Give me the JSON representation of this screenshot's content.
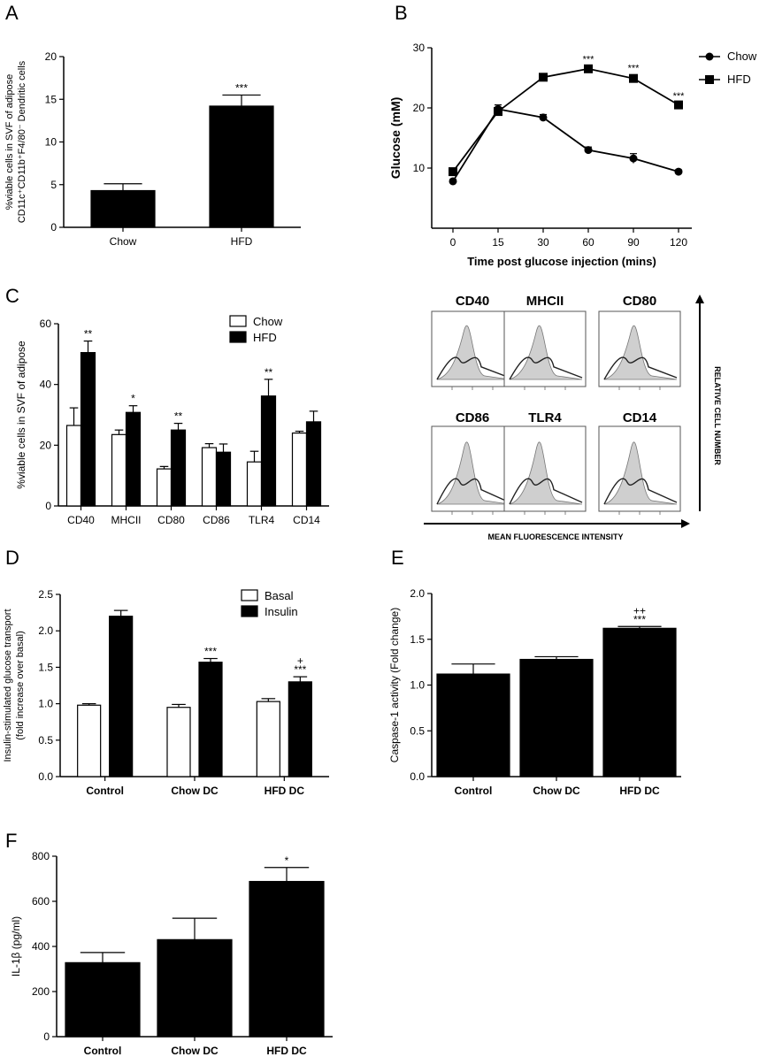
{
  "panel_letters": {
    "a": "A",
    "b": "B",
    "c": "C",
    "d": "D",
    "e": "E",
    "f": "F"
  },
  "colors": {
    "bar_dark": "#000000",
    "bar_light": "#ffffff",
    "axis": "#000000"
  },
  "chart_data": [
    {
      "id": "A",
      "type": "bar",
      "categories": [
        "Chow",
        "HFD"
      ],
      "values": [
        4.3,
        14.2
      ],
      "errors": [
        0.8,
        1.3
      ],
      "annotations": [
        "",
        "***"
      ],
      "ylabel": "%viable cells in SVF of adipose",
      "ylabel2": "CD11c⁺CD11b⁺F4/80⁻ Dendritic cells",
      "ylim": [
        0,
        20
      ],
      "yticks": [
        0,
        5,
        10,
        15,
        20
      ],
      "grid": false
    },
    {
      "id": "B",
      "type": "line",
      "x": [
        0,
        15,
        30,
        60,
        90,
        120
      ],
      "xtick_labels": [
        "0",
        "15",
        "30",
        "60",
        "90",
        "120"
      ],
      "series": [
        {
          "name": "Chow",
          "marker": "circle",
          "values": [
            7.8,
            19.8,
            18.4,
            13.0,
            11.6,
            9.4
          ],
          "errors": [
            0.3,
            0.7,
            0.5,
            0.5,
            0.8,
            0.3
          ],
          "annotations": [
            "",
            "",
            "",
            "",
            "",
            ""
          ]
        },
        {
          "name": "HFD",
          "marker": "square",
          "values": [
            9.4,
            19.4,
            25.1,
            26.5,
            24.9,
            20.5
          ],
          "errors": [
            0.4,
            0.6,
            0.4,
            0.5,
            0.6,
            0.4
          ],
          "annotations": [
            "",
            "",
            "",
            "***",
            "***",
            "***"
          ]
        }
      ],
      "xlabel": "Time post glucose injection (mins)",
      "ylabel": "Glucose (mM)",
      "ylim": [
        0,
        30
      ],
      "yticks": [
        10,
        20,
        30
      ],
      "legend": "top-right",
      "grid": false
    },
    {
      "id": "C",
      "type": "bar",
      "categories": [
        "CD40",
        "MHCII",
        "CD80",
        "CD86",
        "TLR4",
        "CD14"
      ],
      "series": [
        {
          "name": "Chow",
          "values": [
            26.5,
            23.5,
            12.2,
            19.2,
            14.5,
            24.0
          ],
          "errors": [
            5.8,
            1.5,
            0.8,
            1.3,
            3.5,
            0.6
          ],
          "annotations": [
            "",
            "",
            "",
            "",
            "",
            ""
          ]
        },
        {
          "name": "HFD",
          "values": [
            50.5,
            30.8,
            25.0,
            17.7,
            36.2,
            27.7
          ],
          "errors": [
            3.8,
            2.2,
            2.2,
            2.7,
            5.5,
            3.5
          ],
          "annotations": [
            "**",
            "*",
            "**",
            "",
            "**",
            ""
          ]
        }
      ],
      "ylabel": "%viable cells in SVF of adipose",
      "ylim": [
        0,
        60
      ],
      "yticks": [
        0,
        20,
        40,
        60
      ],
      "legend": "top-right",
      "grid": false
    },
    {
      "id": "D",
      "type": "bar",
      "categories": [
        "Control",
        "Chow DC",
        "HFD DC"
      ],
      "series": [
        {
          "name": "Basal",
          "values": [
            0.98,
            0.95,
            1.03
          ],
          "errors": [
            0.02,
            0.04,
            0.04
          ],
          "annotations": [
            "",
            "",
            ""
          ]
        },
        {
          "name": "Insulin",
          "values": [
            2.2,
            1.57,
            1.3
          ],
          "errors": [
            0.08,
            0.05,
            0.07
          ],
          "annotations": [
            "",
            "***",
            "***"
          ],
          "annotations2": [
            "",
            "",
            "+"
          ]
        }
      ],
      "ylabel": "Insulin-stimulated glucose transport",
      "ylabel2": "(fold increase over basal)",
      "ylim": [
        0,
        2.5
      ],
      "yticks": [
        0.0,
        0.5,
        1.0,
        1.5,
        2.0,
        2.5
      ],
      "legend": "top-right",
      "grid": false
    },
    {
      "id": "E",
      "type": "bar",
      "categories": [
        "Control",
        "Chow DC",
        "HFD DC"
      ],
      "values": [
        1.12,
        1.28,
        1.62
      ],
      "errors": [
        0.11,
        0.03,
        0.02
      ],
      "annotations": [
        "",
        "",
        "***"
      ],
      "annotations2": [
        "",
        "",
        "++"
      ],
      "ylabel": "Caspase-1 activity (Fold change)",
      "ylim": [
        0,
        2.0
      ],
      "yticks": [
        0.0,
        0.5,
        1.0,
        1.5,
        2.0
      ],
      "grid": false
    },
    {
      "id": "F",
      "type": "bar",
      "categories": [
        "Control",
        "Chow DC",
        "HFD DC"
      ],
      "values": [
        328,
        430,
        688
      ],
      "errors": [
        45,
        95,
        62
      ],
      "annotations": [
        "",
        "",
        "*"
      ],
      "ylabel": "IL-1β (pg/ml)",
      "ylim": [
        0,
        800
      ],
      "yticks": [
        0,
        200,
        400,
        600,
        800
      ],
      "grid": false
    }
  ],
  "histograms": {
    "labels": [
      "CD40",
      "MHCII",
      "CD80",
      "CD86",
      "TLR4",
      "CD14"
    ],
    "x_axis_label": "MEAN FLUORESCENCE INTENSITY",
    "y_axis_label": "RELATIVE CELL NUMBER"
  }
}
